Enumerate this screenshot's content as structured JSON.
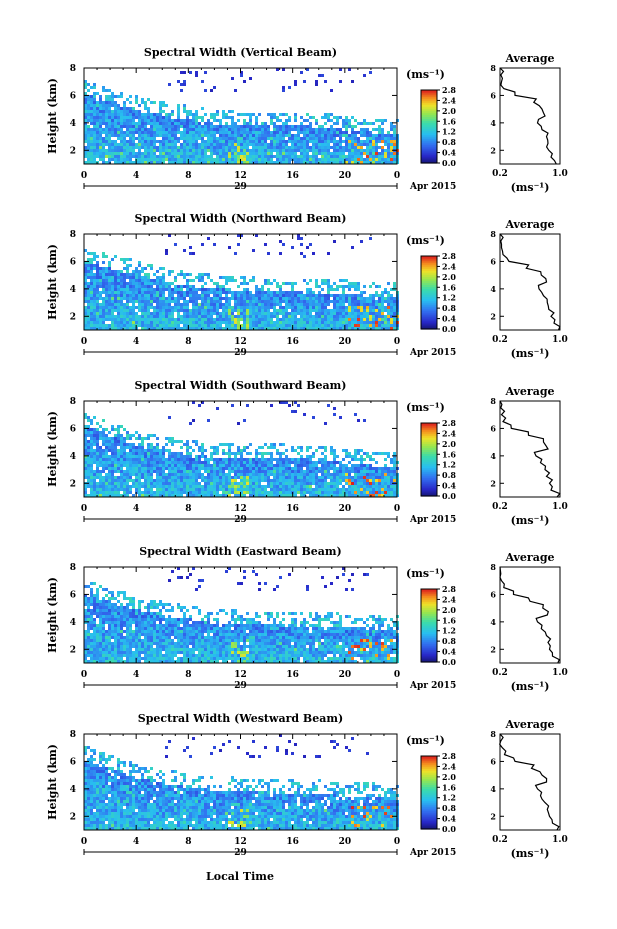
{
  "figure": {
    "xlabel_bottom": "Local Time",
    "colorbar_unit": "(ms⁻¹)",
    "colorbar_ticks": [
      "2.8",
      "2.4",
      "2.0",
      "1.6",
      "1.2",
      "0.8",
      "0.4",
      "0.0"
    ],
    "date_day": "29",
    "date_month": "Apr 2015",
    "avg_title": "Average",
    "avg_xlabel": "(ms⁻¹)"
  },
  "chart_data": [
    {
      "type": "heatmap",
      "title": "Spectral Width (Vertical Beam)",
      "ylabel": "Height (km)",
      "xticks": [
        "0",
        "4",
        "8",
        "12",
        "16",
        "20",
        "0"
      ],
      "yticks": [
        "2",
        "4",
        "6",
        "8"
      ],
      "xlim": [
        0,
        24
      ],
      "ylim": [
        1,
        8
      ],
      "colorbar": {
        "label": "(ms⁻¹)",
        "range": [
          0.0,
          2.8
        ]
      },
      "boundary_height_km": {
        "x": [
          0,
          2,
          4,
          6,
          8,
          10,
          12,
          14,
          16,
          18,
          20,
          22,
          24
        ],
        "y": [
          6.2,
          5.6,
          5.0,
          4.6,
          4.3,
          4.0,
          3.9,
          3.9,
          3.9,
          3.8,
          3.6,
          3.4,
          3.3
        ]
      },
      "average_profile": {
        "xlim": [
          0.2,
          1.0
        ],
        "xticks": [
          "0.2",
          "1.0"
        ],
        "ylim": [
          1,
          8
        ],
        "yticks": [
          "2",
          "4",
          "6",
          "8"
        ],
        "height_km": [
          1.0,
          1.5,
          2.0,
          2.5,
          3.0,
          3.5,
          4.0,
          4.5,
          5.0,
          5.5,
          6.0,
          6.5,
          7.0,
          7.5,
          8.0
        ],
        "width_ms": [
          0.95,
          0.88,
          0.85,
          0.84,
          0.82,
          0.76,
          0.7,
          0.8,
          0.76,
          0.65,
          0.4,
          0.25,
          0.22,
          0.21,
          0.2
        ]
      }
    },
    {
      "type": "heatmap",
      "title": "Spectral Width (Northward Beam)",
      "ylabel": "Height (km)",
      "xticks": [
        "0",
        "4",
        "8",
        "12",
        "16",
        "20",
        "0"
      ],
      "yticks": [
        "2",
        "4",
        "6",
        "8"
      ],
      "xlim": [
        0,
        24
      ],
      "ylim": [
        1,
        8
      ],
      "colorbar": {
        "label": "(ms⁻¹)",
        "range": [
          0.0,
          2.8
        ]
      },
      "boundary_height_km": {
        "x": [
          0,
          2,
          4,
          6,
          8,
          10,
          12,
          14,
          16,
          18,
          20,
          22,
          24
        ],
        "y": [
          6.0,
          5.6,
          5.1,
          4.6,
          4.3,
          4.1,
          4.0,
          3.9,
          3.9,
          3.8,
          3.7,
          3.6,
          3.6
        ]
      },
      "average_profile": {
        "xlim": [
          0.2,
          1.0
        ],
        "xticks": [
          "0.2",
          "1.0"
        ],
        "ylim": [
          1,
          8
        ],
        "yticks": [
          "2",
          "4",
          "6",
          "8"
        ],
        "height_km": [
          1.0,
          1.5,
          2.0,
          2.5,
          3.0,
          3.5,
          4.0,
          4.5,
          5.0,
          5.5,
          6.0,
          6.5,
          7.0,
          7.5,
          8.0
        ],
        "width_ms": [
          0.98,
          0.92,
          0.88,
          0.85,
          0.83,
          0.78,
          0.72,
          0.82,
          0.75,
          0.55,
          0.32,
          0.24,
          0.22,
          0.21,
          0.2
        ]
      }
    },
    {
      "type": "heatmap",
      "title": "Spectral Width (Southward Beam)",
      "ylabel": "Height (km)",
      "xticks": [
        "0",
        "4",
        "8",
        "12",
        "16",
        "20",
        "0"
      ],
      "yticks": [
        "2",
        "4",
        "6",
        "8"
      ],
      "xlim": [
        0,
        24
      ],
      "ylim": [
        1,
        8
      ],
      "colorbar": {
        "label": "(ms⁻¹)",
        "range": [
          0.0,
          2.8
        ]
      },
      "boundary_height_km": {
        "x": [
          0,
          2,
          4,
          6,
          8,
          10,
          12,
          14,
          16,
          18,
          20,
          22,
          24
        ],
        "y": [
          6.3,
          5.5,
          4.9,
          4.5,
          4.2,
          4.0,
          3.9,
          4.0,
          3.9,
          3.8,
          3.6,
          3.4,
          3.3
        ]
      },
      "average_profile": {
        "xlim": [
          0.2,
          1.0
        ],
        "xticks": [
          "0.2",
          "1.0"
        ],
        "ylim": [
          1,
          8
        ],
        "yticks": [
          "2",
          "4",
          "6",
          "8"
        ],
        "height_km": [
          1.0,
          1.5,
          2.0,
          2.5,
          3.0,
          3.5,
          4.0,
          4.5,
          5.0,
          5.5,
          6.0,
          6.5,
          7.0,
          7.5,
          8.0
        ],
        "width_ms": [
          0.96,
          0.88,
          0.86,
          0.82,
          0.8,
          0.74,
          0.68,
          0.84,
          0.78,
          0.58,
          0.35,
          0.24,
          0.22,
          0.21,
          0.2
        ]
      }
    },
    {
      "type": "heatmap",
      "title": "Spectral Width (Eastward Beam)",
      "ylabel": "Height (km)",
      "xticks": [
        "0",
        "4",
        "8",
        "12",
        "16",
        "20",
        "0"
      ],
      "yticks": [
        "2",
        "4",
        "6",
        "8"
      ],
      "xlim": [
        0,
        24
      ],
      "ylim": [
        1,
        8
      ],
      "colorbar": {
        "label": "(ms⁻¹)",
        "range": [
          0.0,
          2.8
        ]
      },
      "boundary_height_km": {
        "x": [
          0,
          2,
          4,
          6,
          8,
          10,
          12,
          14,
          16,
          18,
          20,
          22,
          24
        ],
        "y": [
          6.1,
          5.5,
          5.0,
          4.6,
          4.3,
          4.0,
          3.9,
          3.9,
          3.8,
          3.8,
          3.7,
          3.5,
          3.5
        ]
      },
      "average_profile": {
        "xlim": [
          0.2,
          1.0
        ],
        "xticks": [
          "0.2",
          "1.0"
        ],
        "ylim": [
          1,
          8
        ],
        "yticks": [
          "2",
          "4",
          "6",
          "8"
        ],
        "height_km": [
          1.0,
          1.5,
          2.0,
          2.5,
          3.0,
          3.5,
          4.0,
          4.5,
          5.0,
          5.5,
          6.0,
          6.5,
          7.0,
          7.5,
          8.0
        ],
        "width_ms": [
          0.97,
          0.9,
          0.86,
          0.84,
          0.82,
          0.75,
          0.7,
          0.83,
          0.77,
          0.6,
          0.38,
          0.25,
          0.22,
          0.21,
          0.2
        ]
      }
    },
    {
      "type": "heatmap",
      "title": "Spectral Width (Westward Beam)",
      "ylabel": "Height (km)",
      "xticks": [
        "0",
        "4",
        "8",
        "12",
        "16",
        "20",
        "0"
      ],
      "yticks": [
        "2",
        "4",
        "6",
        "8"
      ],
      "xlim": [
        0,
        24
      ],
      "ylim": [
        1,
        8
      ],
      "colorbar": {
        "label": "(ms⁻¹)",
        "range": [
          0.0,
          2.8
        ]
      },
      "boundary_height_km": {
        "x": [
          0,
          2,
          4,
          6,
          8,
          10,
          12,
          14,
          16,
          18,
          20,
          22,
          24
        ],
        "y": [
          6.2,
          5.5,
          4.9,
          4.5,
          4.2,
          4.0,
          3.9,
          3.8,
          3.8,
          3.7,
          3.6,
          3.5,
          3.4
        ]
      },
      "average_profile": {
        "xlim": [
          0.2,
          1.0
        ],
        "xticks": [
          "0.2",
          "1.0"
        ],
        "ylim": [
          1,
          8
        ],
        "yticks": [
          "2",
          "4",
          "6",
          "8"
        ],
        "height_km": [
          1.0,
          1.5,
          2.0,
          2.5,
          3.0,
          3.5,
          4.0,
          4.5,
          5.0,
          5.5,
          6.0,
          6.5,
          7.0,
          7.5,
          8.0
        ],
        "width_ms": [
          0.96,
          0.9,
          0.86,
          0.83,
          0.8,
          0.74,
          0.7,
          0.82,
          0.76,
          0.62,
          0.4,
          0.26,
          0.23,
          0.21,
          0.2
        ]
      }
    }
  ]
}
